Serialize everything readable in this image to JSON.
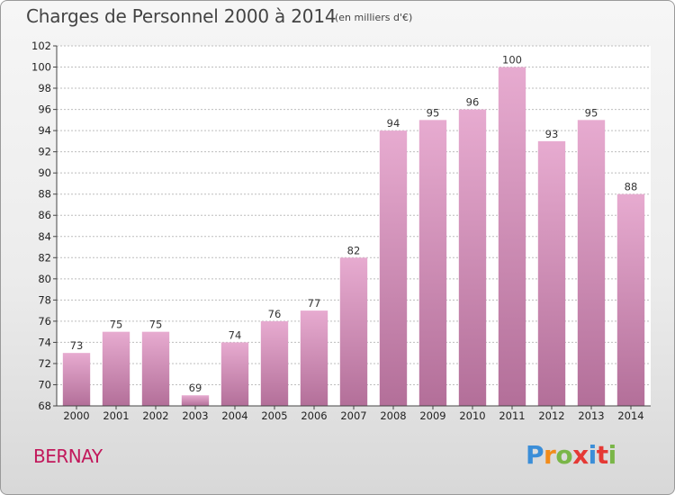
{
  "header": {
    "title": "Charges de Personnel 2000 à 2014",
    "subtitle": "(en milliers d'€)"
  },
  "footer": {
    "city": "BERNAY",
    "logo_text": "Proxiti"
  },
  "colors": {
    "bar_top": "#e7abd0",
    "bar_bottom": "#b36f99",
    "city": "#c2185b",
    "logo": [
      "#3b8ed8",
      "#f28c1a",
      "#7ab648",
      "#e53935",
      "#3b8ed8",
      "#e53935",
      "#7ab648"
    ]
  },
  "chart_data": {
    "type": "bar",
    "title": "Charges de Personnel 2000 à 2014",
    "subtitle": "(en milliers d'€)",
    "categories": [
      "2000",
      "2001",
      "2002",
      "2003",
      "2004",
      "2005",
      "2006",
      "2007",
      "2008",
      "2009",
      "2010",
      "2011",
      "2012",
      "2013",
      "2014"
    ],
    "values": [
      73,
      75,
      75,
      69,
      74,
      76,
      77,
      82,
      94,
      95,
      96,
      100,
      93,
      95,
      88
    ],
    "ylim": [
      68,
      102
    ],
    "yticks": [
      68,
      70,
      72,
      74,
      76,
      78,
      80,
      82,
      84,
      86,
      88,
      90,
      92,
      94,
      96,
      98,
      100,
      102
    ],
    "grid": true,
    "data_labels": true
  }
}
